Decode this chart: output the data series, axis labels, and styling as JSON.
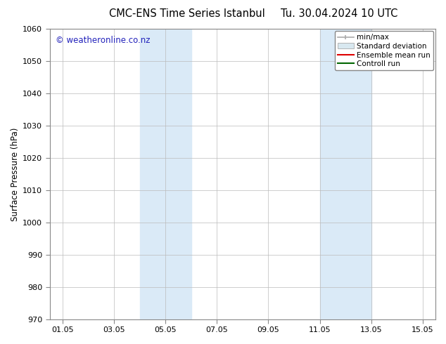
{
  "title_left": "CMC-ENS Time Series Istanbul",
  "title_right": "Tu. 30.04.2024 10 UTC",
  "ylabel": "Surface Pressure (hPa)",
  "ylim": [
    970,
    1060
  ],
  "yticks": [
    970,
    980,
    990,
    1000,
    1010,
    1020,
    1030,
    1040,
    1050,
    1060
  ],
  "xlim": [
    0.5,
    15.5
  ],
  "xtick_labels": [
    "01.05",
    "03.05",
    "05.05",
    "07.05",
    "09.05",
    "11.05",
    "13.05",
    "15.05"
  ],
  "xtick_positions": [
    1,
    3,
    5,
    7,
    9,
    11,
    13,
    15
  ],
  "shaded_bands": [
    {
      "start": 4.0,
      "end": 6.0
    },
    {
      "start": 11.0,
      "end": 13.0
    }
  ],
  "shade_color": "#daeaf7",
  "watermark": "© weatheronline.co.nz",
  "watermark_color": "#2222bb",
  "background_color": "#ffffff",
  "plot_bg_color": "#ffffff",
  "grid_color": "#bbbbbb",
  "spine_color": "#888888",
  "title_fontsize": 10.5,
  "ylabel_fontsize": 8.5,
  "tick_fontsize": 8,
  "legend_fontsize": 7.5,
  "watermark_fontsize": 8.5
}
